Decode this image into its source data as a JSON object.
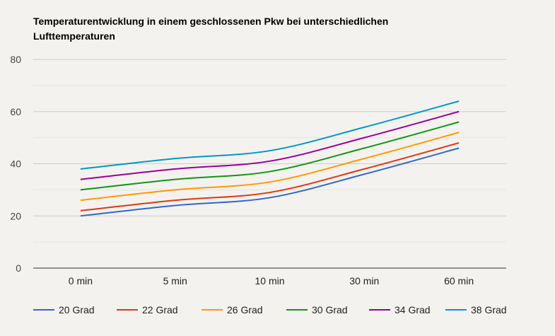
{
  "chart_data": {
    "type": "line",
    "title": "Temperaturentwicklung in einem geschlossenen Pkw bei unterschiedlichen Lufttemperaturen",
    "xlabel": "",
    "ylabel": "",
    "categories": [
      "0 min",
      "5 min",
      "10 min",
      "30 min",
      "60 min"
    ],
    "ylim": [
      0,
      80
    ],
    "yticks": [
      0,
      20,
      40,
      60,
      80
    ],
    "grid": true,
    "smooth": true,
    "legend": "bottom",
    "series": [
      {
        "name": "20 Grad",
        "color": "#3366cc",
        "values": [
          20,
          24,
          27,
          36,
          46
        ]
      },
      {
        "name": "22 Grad",
        "color": "#dc3912",
        "values": [
          22,
          26,
          29,
          38,
          48
        ]
      },
      {
        "name": "26 Grad",
        "color": "#ff9900",
        "values": [
          26,
          30,
          33,
          42,
          52
        ]
      },
      {
        "name": "30 Grad",
        "color": "#109618",
        "values": [
          30,
          34,
          37,
          46,
          56
        ]
      },
      {
        "name": "34 Grad",
        "color": "#990099",
        "values": [
          34,
          38,
          41,
          50,
          60
        ]
      },
      {
        "name": "38 Grad",
        "color": "#0099c6",
        "values": [
          38,
          42,
          45,
          54,
          64
        ]
      }
    ]
  }
}
